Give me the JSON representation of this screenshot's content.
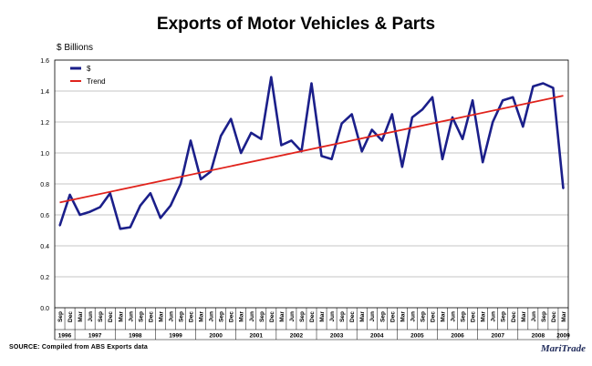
{
  "chart_data": {
    "type": "line",
    "title": "Exports of Motor Vehicles & Parts",
    "ylabel": "$ Billions",
    "ylim": [
      0,
      1.6
    ],
    "yticks": [
      "0.0",
      "0.2",
      "0.4",
      "0.6",
      "0.8",
      "1.0",
      "1.2",
      "1.4",
      "1.6"
    ],
    "grid": true,
    "legend_position": "top-left",
    "x_months": [
      "Sep",
      "Dec",
      "Mar",
      "Jun",
      "Sep",
      "Dec",
      "Mar",
      "Jun",
      "Sep",
      "Dec",
      "Mar",
      "Jun",
      "Sep",
      "Dec",
      "Mar",
      "Jun",
      "Sep",
      "Dec",
      "Mar",
      "Jun",
      "Sep",
      "Dec",
      "Mar",
      "Jun",
      "Sep",
      "Dec",
      "Mar",
      "Jun",
      "Sep",
      "Dec",
      "Mar",
      "Jun",
      "Sep",
      "Dec",
      "Mar",
      "Jun",
      "Sep",
      "Dec",
      "Mar",
      "Jun",
      "Sep",
      "Dec",
      "Mar",
      "Jun",
      "Sep",
      "Dec",
      "Mar",
      "Jun",
      "Sep",
      "Dec",
      "Mar"
    ],
    "years": [
      {
        "label": "1996",
        "start": 0,
        "end": 1
      },
      {
        "label": "1997",
        "start": 2,
        "end": 5
      },
      {
        "label": "1998",
        "start": 6,
        "end": 9
      },
      {
        "label": "1999",
        "start": 10,
        "end": 13
      },
      {
        "label": "2000",
        "start": 14,
        "end": 17
      },
      {
        "label": "2001",
        "start": 18,
        "end": 21
      },
      {
        "label": "2002",
        "start": 22,
        "end": 25
      },
      {
        "label": "2003",
        "start": 26,
        "end": 29
      },
      {
        "label": "2004",
        "start": 30,
        "end": 33
      },
      {
        "label": "2005",
        "start": 34,
        "end": 37
      },
      {
        "label": "2006",
        "start": 38,
        "end": 41
      },
      {
        "label": "2007",
        "start": 42,
        "end": 45
      },
      {
        "label": "2008",
        "start": 46,
        "end": 49
      },
      {
        "label": "2009",
        "start": 50,
        "end": 50
      }
    ],
    "series": [
      {
        "name": "$",
        "color": "#1b1f8a",
        "values": [
          0.53,
          0.73,
          0.6,
          0.62,
          0.65,
          0.74,
          0.51,
          0.52,
          0.66,
          0.74,
          0.58,
          0.66,
          0.8,
          1.08,
          0.83,
          0.88,
          1.11,
          1.22,
          1.0,
          1.13,
          1.09,
          1.49,
          1.05,
          1.08,
          1.01,
          1.45,
          0.98,
          0.96,
          1.19,
          1.25,
          1.01,
          1.15,
          1.08,
          1.25,
          0.91,
          1.23,
          1.28,
          1.36,
          0.96,
          1.23,
          1.09,
          1.34,
          0.94,
          1.2,
          1.34,
          1.36,
          1.17,
          1.43,
          1.45,
          1.42,
          0.77
        ]
      },
      {
        "name": "Trend",
        "color": "#e0231c",
        "values": [
          0.68,
          1.37
        ],
        "x_index": [
          0,
          50
        ]
      }
    ]
  },
  "source_note": "SOURCE: Compiled from ABS Exports data",
  "brand": "MariTrade"
}
